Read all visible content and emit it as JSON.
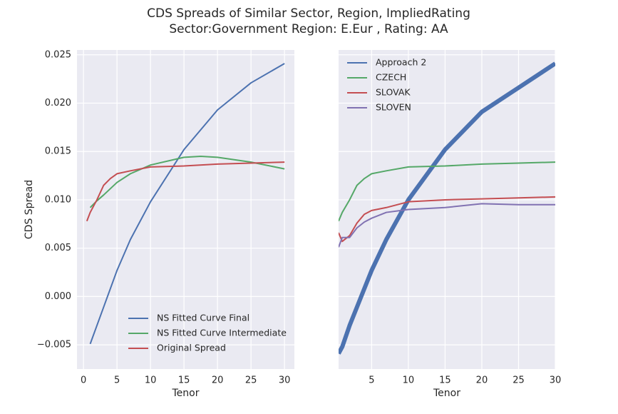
{
  "title": [
    "CDS Spreads of Similar Sector, Region, ImpliedRating",
    "Sector:Government Region: E.Eur , Rating: AA"
  ],
  "chart_data": [
    {
      "type": "line",
      "xlabel": "Tenor",
      "ylabel": "CDS Spread",
      "legend": "lower center",
      "grid": true,
      "xlim": [
        -0.975,
        31.475
      ],
      "xticks": [
        0,
        5,
        10,
        15,
        20,
        25,
        30
      ],
      "ylim": [
        -0.0075,
        0.0255
      ],
      "yticks": [
        {
          "value": -0.005,
          "label": "−0.005"
        },
        {
          "value": 0,
          "label": "0.000"
        },
        {
          "value": 0.005,
          "label": "0.005"
        },
        {
          "value": 0.01,
          "label": "0.010"
        },
        {
          "value": 0.015,
          "label": "0.015"
        },
        {
          "value": 0.02,
          "label": "0.020"
        },
        {
          "value": 0.025,
          "label": "0.025"
        }
      ],
      "series": [
        {
          "name": "NS Fitted Curve Final",
          "color": "#4c72b0",
          "x": [
            1,
            2,
            3,
            5,
            7,
            10,
            15,
            20,
            25,
            30
          ],
          "values": [
            -0.0049,
            -0.003,
            -0.0011,
            0.0027,
            0.0059,
            0.0098,
            0.0152,
            0.0193,
            0.0221,
            0.0241
          ]
        },
        {
          "name": "NS Fitted Curve Intermediate",
          "color": "#55a868",
          "x": [
            1,
            2,
            3,
            5,
            7,
            10,
            15,
            17.5,
            20,
            25,
            30
          ],
          "values": [
            0.0092,
            0.0099,
            0.0105,
            0.0118,
            0.0127,
            0.0136,
            0.0144,
            0.0145,
            0.0144,
            0.0139,
            0.0132
          ]
        },
        {
          "name": "Original Spread",
          "color": "#c44e52",
          "x": [
            0.5,
            1,
            2,
            3,
            4,
            5,
            7,
            10,
            15,
            20,
            25,
            30
          ],
          "values": [
            0.0078,
            0.0087,
            0.01,
            0.0115,
            0.0122,
            0.0127,
            0.013,
            0.0134,
            0.0135,
            0.0137,
            0.0138,
            0.0139
          ]
        }
      ]
    },
    {
      "type": "line",
      "xlabel": "Tenor",
      "legend": "upper left",
      "grid": true,
      "xlim": [
        0.5,
        30
      ],
      "xticks": [
        5,
        10,
        15,
        20,
        25,
        30
      ],
      "ylim": [
        -0.0075,
        0.0255
      ],
      "yticks": [
        -0.005,
        0,
        0.005,
        0.01,
        0.015,
        0.02,
        0.025
      ],
      "series": [
        {
          "name": "Approach 2",
          "color": "#4c72b0",
          "linewidth": 6,
          "x": [
            0.5,
            1,
            2,
            3,
            5,
            7,
            10,
            15,
            20,
            25,
            30
          ],
          "values": [
            -0.0059,
            -0.0052,
            -0.003,
            -0.0011,
            0.0027,
            0.0059,
            0.01,
            0.0152,
            0.0191,
            0.0216,
            0.0241
          ]
        },
        {
          "name": "CZECH",
          "color": "#55a868",
          "x": [
            0.5,
            1,
            2,
            3,
            4,
            5,
            7,
            10,
            15,
            20,
            25,
            30
          ],
          "values": [
            0.0078,
            0.0087,
            0.01,
            0.0115,
            0.0122,
            0.0127,
            0.013,
            0.0134,
            0.0135,
            0.0137,
            0.0138,
            0.0139
          ]
        },
        {
          "name": "SLOVAK",
          "color": "#c44e52",
          "x": [
            0.5,
            1,
            2,
            3,
            4,
            5,
            7,
            10,
            15,
            20,
            25,
            30
          ],
          "values": [
            0.0066,
            0.0057,
            0.0063,
            0.0076,
            0.0085,
            0.0089,
            0.0092,
            0.0098,
            0.01,
            0.0101,
            0.0102,
            0.0103
          ]
        },
        {
          "name": "SLOVEN",
          "color": "#8172b2",
          "x": [
            0.5,
            1,
            2,
            3,
            4,
            5,
            7,
            10,
            15,
            20,
            25,
            30
          ],
          "values": [
            0.0051,
            0.0061,
            0.0061,
            0.0071,
            0.0077,
            0.0081,
            0.0087,
            0.009,
            0.0092,
            0.0096,
            0.0095,
            0.0095
          ]
        }
      ]
    }
  ]
}
